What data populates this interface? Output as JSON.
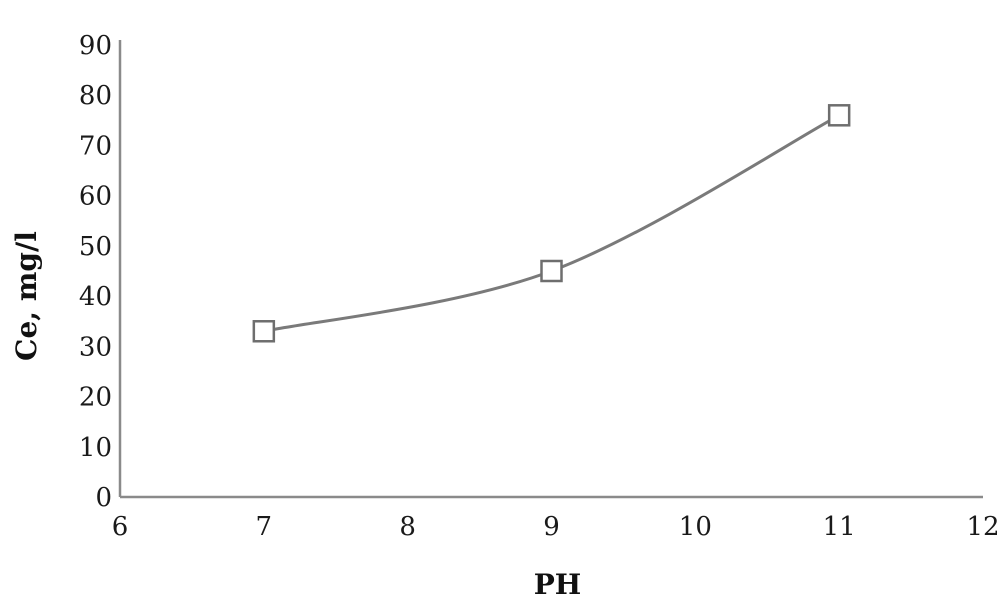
{
  "chart_data": {
    "type": "line",
    "title": "",
    "xlabel": "PH",
    "ylabel": "Ce, mg/l",
    "xlim": [
      6,
      12
    ],
    "ylim": [
      0,
      90
    ],
    "xticks": [
      6,
      7,
      8,
      9,
      10,
      11,
      12
    ],
    "xtick_labels": [
      "6",
      "7",
      "8",
      "9",
      "10",
      "11",
      "12"
    ],
    "yticks": [
      0,
      10,
      20,
      30,
      40,
      50,
      60,
      70,
      80,
      90
    ],
    "ytick_labels": [
      "0",
      "10",
      "20",
      "30",
      "40",
      "50",
      "60",
      "70",
      "80",
      "90"
    ],
    "grid": false,
    "series": [
      {
        "marker": "open-square",
        "smooth": true,
        "points": [
          {
            "x": 7,
            "y": 33
          },
          {
            "x": 9,
            "y": 45
          },
          {
            "x": 11,
            "y": 76
          }
        ]
      }
    ],
    "colors": {
      "line": "#7a7a7a",
      "marker_stroke": "#6e6e6e",
      "marker_fill": "#ffffff",
      "axis": "#8a8a8a",
      "text": "#1a1a1a"
    }
  }
}
